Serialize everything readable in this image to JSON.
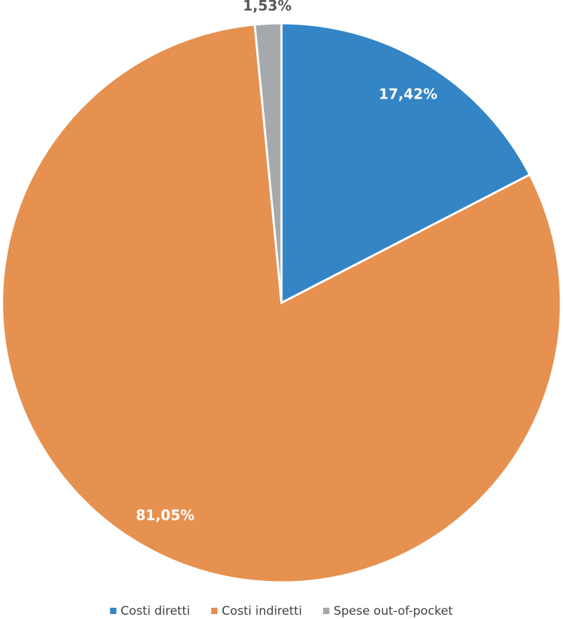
{
  "chart_data": {
    "type": "pie",
    "categories": [
      "Costi diretti",
      "Costi indiretti",
      "Spese out-of-pocket"
    ],
    "values": [
      17.42,
      81.05,
      1.53
    ],
    "value_labels": [
      "17,42%",
      "81,05%",
      "1,53%"
    ],
    "colors": [
      "#3385c6",
      "#e69150",
      "#a5a9ae"
    ],
    "legend": "bottom"
  }
}
